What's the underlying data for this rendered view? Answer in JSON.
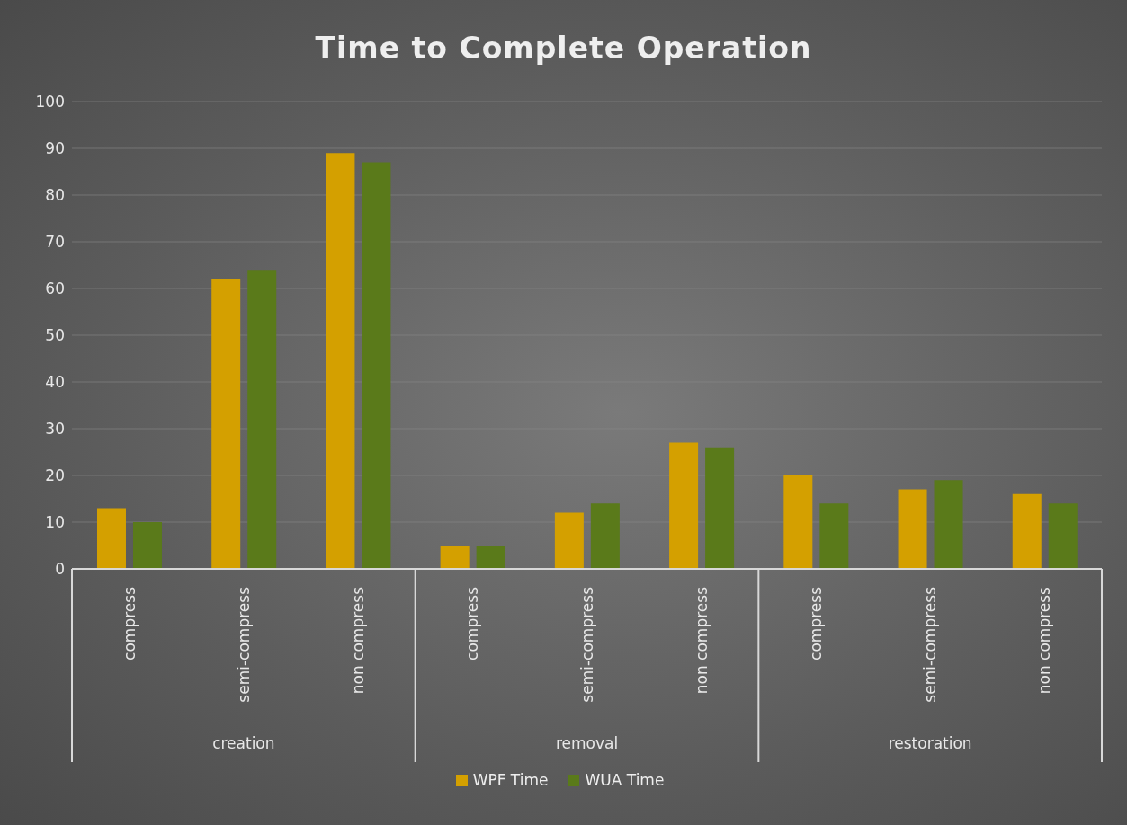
{
  "chart_data": {
    "type": "bar",
    "title": "Time to Complete Operation",
    "categories": [
      "compress",
      "semi-compress",
      "non compress",
      "compress",
      "semi-compress",
      "non compress",
      "compress",
      "semi-compress",
      "non compress"
    ],
    "annotations": [
      "creation",
      "removal",
      "restoration"
    ],
    "series": [
      {
        "name": "WPF Time",
        "color": "#d4a000",
        "values": [
          13,
          62,
          89,
          5,
          12,
          27,
          20,
          17,
          16
        ]
      },
      {
        "name": "WUA Time",
        "color": "#5a7a1a",
        "values": [
          10,
          64,
          87,
          5,
          14,
          26,
          14,
          19,
          14
        ]
      }
    ],
    "ylim": [
      0,
      100
    ],
    "yticks": [
      0,
      10,
      20,
      30,
      40,
      50,
      60,
      70,
      80,
      90,
      100
    ],
    "grid": "y",
    "legend": "bottom"
  }
}
